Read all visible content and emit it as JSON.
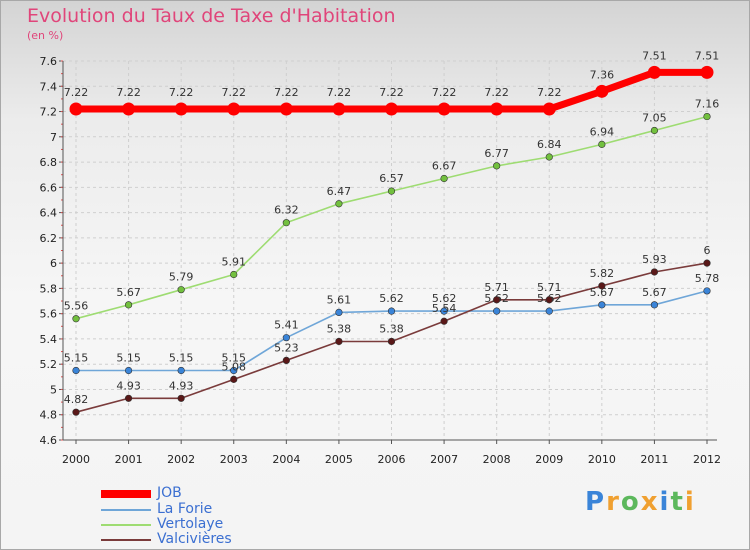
{
  "title": "Evolution du Taux de Taxe d'Habitation",
  "subtitle": "(en %)",
  "brand": {
    "letters": [
      "P",
      "r",
      "o",
      "x",
      "i",
      "t",
      "i"
    ],
    "colors": [
      "#3a84d8",
      "#f0a030",
      "#5cb85c",
      "#f0a030",
      "#3a84d8",
      "#5cb85c",
      "#f0a030"
    ]
  },
  "chart_data": {
    "type": "line",
    "title": "Evolution du Taux de Taxe d'Habitation",
    "ylabel": "(en %)",
    "xlabel": "",
    "x": [
      "2000",
      "2001",
      "2002",
      "2003",
      "2004",
      "2005",
      "2006",
      "2007",
      "2008",
      "2009",
      "2010",
      "2011",
      "2012"
    ],
    "ylim": [
      4.6,
      7.6
    ],
    "yticks": [
      "4.6",
      "4.8",
      "5",
      "5.2",
      "5.4",
      "5.6",
      "5.8",
      "6",
      "6.2",
      "6.4",
      "6.6",
      "6.8",
      "7",
      "7.2",
      "7.4",
      "7.6"
    ],
    "grid": true,
    "legend_position": "bottom-left",
    "series": [
      {
        "name": "JOB",
        "color": "#ff0000",
        "thick": true,
        "values": [
          7.22,
          7.22,
          7.22,
          7.22,
          7.22,
          7.22,
          7.22,
          7.22,
          7.22,
          7.22,
          7.36,
          7.51,
          7.51
        ],
        "labels": [
          "7.22",
          "7.22",
          "7.22",
          "7.22",
          "7.22",
          "7.22",
          "7.22",
          "7.22",
          "7.22",
          "7.22",
          "7.36",
          "7.51",
          "7.51"
        ]
      },
      {
        "name": "La Forie",
        "color": "#6fa6d8",
        "marker": "#3a84d8",
        "values": [
          5.15,
          5.15,
          5.15,
          5.15,
          5.41,
          5.61,
          5.62,
          5.62,
          5.62,
          5.62,
          5.67,
          5.67,
          5.78
        ],
        "labels": [
          "5.15",
          "5.15",
          "5.15",
          "5.15",
          "5.41",
          "5.61",
          "5.62",
          "5.62",
          "5.62",
          "5.62",
          "5.67",
          "5.67",
          "5.78"
        ]
      },
      {
        "name": "Vertolaye",
        "color": "#9edc72",
        "marker": "#72c03e",
        "values": [
          5.56,
          5.67,
          5.79,
          5.91,
          6.32,
          6.47,
          6.57,
          6.67,
          6.77,
          6.84,
          6.94,
          7.05,
          7.16
        ],
        "labels": [
          "5.56",
          "5.67",
          "5.79",
          "5.91",
          "6.32",
          "6.47",
          "6.57",
          "6.67",
          "6.77",
          "6.84",
          "6.94",
          "7.05",
          "7.16"
        ]
      },
      {
        "name": "Valcivières",
        "color": "#7a3b3b",
        "marker": "#5a1818",
        "values": [
          4.82,
          4.93,
          4.93,
          5.08,
          5.23,
          5.38,
          5.38,
          5.54,
          5.71,
          5.71,
          5.82,
          5.93,
          6
        ],
        "labels": [
          "4.82",
          "4.93",
          "4.93",
          "5.08",
          "5.23",
          "5.38",
          "5.38",
          "5.54",
          "5.71",
          "5.71",
          "5.82",
          "5.93",
          "6"
        ]
      }
    ]
  }
}
